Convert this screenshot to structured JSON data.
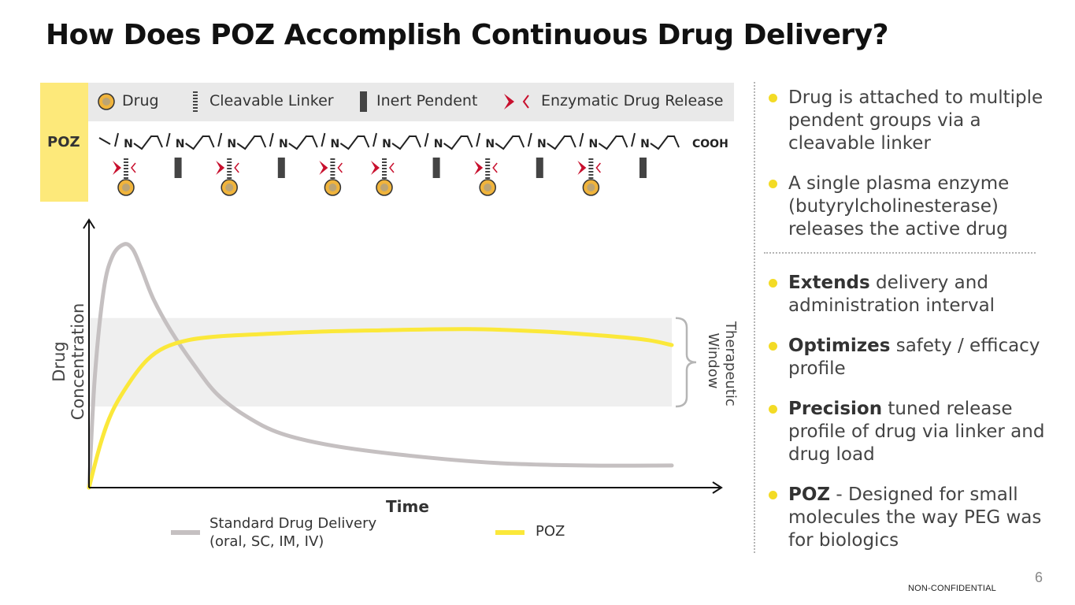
{
  "title": "How Does POZ Accomplish Continuous Drug Delivery?",
  "legend": {
    "drug": "Drug",
    "linker": "Cleavable Linker",
    "pendent": "Inert Pendent",
    "release": "Enzymatic Drug Release"
  },
  "polymer": {
    "tab_label": "POZ",
    "repeat_unit_label": "N",
    "end_group": "COOH",
    "pendents": [
      "drug",
      "inert",
      "drug",
      "inert",
      "drug",
      "drug",
      "inert",
      "drug",
      "inert",
      "drug",
      "inert"
    ]
  },
  "chart_data": {
    "type": "line",
    "xlabel": "Time",
    "ylabel": "Drug Concentration",
    "band_label": "Therapeutic Window",
    "band": [
      0.33,
      0.69
    ],
    "xlim": [
      0,
      1
    ],
    "ylim": [
      0,
      1
    ],
    "series": [
      {
        "name": "Standard Drug Delivery",
        "name_line2": "(oral, SC, IM, IV)",
        "color": "#c5c0c1",
        "x": [
          0,
          0.01,
          0.025,
          0.04,
          0.06,
          0.075,
          0.09,
          0.11,
          0.14,
          0.18,
          0.22,
          0.27,
          0.33,
          0.42,
          0.55,
          0.7,
          0.85,
          1.0
        ],
        "y": [
          0.0,
          0.45,
          0.8,
          0.94,
          0.99,
          0.97,
          0.89,
          0.77,
          0.64,
          0.5,
          0.38,
          0.29,
          0.22,
          0.17,
          0.13,
          0.1,
          0.09,
          0.09
        ]
      },
      {
        "name": "POZ",
        "color": "#fbe83a",
        "x": [
          0,
          0.02,
          0.04,
          0.07,
          0.1,
          0.13,
          0.17,
          0.22,
          0.3,
          0.4,
          0.5,
          0.65,
          0.78,
          0.9,
          0.96,
          1.0
        ],
        "y": [
          0.0,
          0.18,
          0.31,
          0.43,
          0.52,
          0.57,
          0.6,
          0.615,
          0.625,
          0.635,
          0.64,
          0.645,
          0.635,
          0.615,
          0.6,
          0.58
        ]
      }
    ]
  },
  "bullets_top": [
    {
      "bold": "",
      "text": "Drug is attached to multiple pendent groups via a cleavable linker"
    },
    {
      "bold": "",
      "text": "A single plasma enzyme (butyrylcholinesterase) releases the active drug"
    }
  ],
  "bullets_bottom": [
    {
      "bold": "Extends",
      "text": " delivery and administration interval"
    },
    {
      "bold": "Optimizes",
      "text": " safety / efficacy profile"
    },
    {
      "bold": "Precision",
      "text": " tuned release profile of drug via linker and drug load"
    },
    {
      "bold": "POZ",
      "text": " - Designed for small molecules the way PEG was for biologics"
    }
  ],
  "footer": {
    "page_number": "6",
    "classification": "NON-CONFIDENTIAL"
  },
  "colors": {
    "accent_yellow": "#f3db25",
    "tab_yellow": "#fde97a",
    "release_red": "#c8102e",
    "drug_orange": "#f0b43c",
    "gray_curve": "#c5c0c1"
  }
}
